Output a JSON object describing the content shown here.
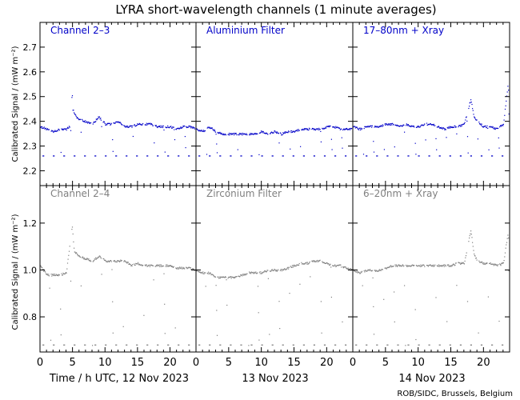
{
  "title": "LYRA short-wavelength channels (1 minute averages)",
  "ylabel": "Calibrated Signal / (mW m⁻²)",
  "xlabel_day1": "Time / h UTC, 12 Nov 2023",
  "xlabel_day2": "13 Nov 2023",
  "xlabel_day3": "14 Nov 2023",
  "credit": "ROB/SIDC, Brussels, Belgium",
  "colors": {
    "top_row": "#0000c8",
    "bottom_row": "#808080",
    "axes": "#000000"
  },
  "chart_data": {
    "type": "scatter",
    "grid": false,
    "x_ticks": [
      0,
      5,
      10,
      15,
      20
    ],
    "x_range_per_day_hours": [
      0,
      24
    ],
    "rows": [
      {
        "ylim": [
          2.14,
          2.8
        ],
        "y_ticks": [
          2.2,
          2.3,
          2.4,
          2.5,
          2.6,
          2.7
        ],
        "y_tick_labels": [
          "2.2",
          "2.3",
          "2.4",
          "2.5",
          "2.6",
          "2.7"
        ],
        "color": "#0000c8",
        "panels": [
          {
            "label": "Channel 2–3",
            "baseline": 2.38,
            "dip_min": 2.26,
            "points": [
              [
                0,
                2.38
              ],
              [
                1,
                2.37
              ],
              [
                2,
                2.36
              ],
              [
                3,
                2.37
              ],
              [
                4,
                2.37
              ],
              [
                4.5,
                2.38
              ],
              [
                4.9,
                2.52
              ],
              [
                5,
                2.45
              ],
              [
                5.5,
                2.42
              ],
              [
                6,
                2.41
              ],
              [
                7,
                2.4
              ],
              [
                8,
                2.39
              ],
              [
                9,
                2.42
              ],
              [
                10,
                2.39
              ],
              [
                11,
                2.39
              ],
              [
                12,
                2.4
              ],
              [
                13,
                2.38
              ],
              [
                14,
                2.38
              ],
              [
                15,
                2.39
              ],
              [
                16,
                2.39
              ],
              [
                17,
                2.39
              ],
              [
                18,
                2.38
              ],
              [
                19,
                2.38
              ],
              [
                20,
                2.38
              ],
              [
                21,
                2.37
              ],
              [
                22,
                2.38
              ],
              [
                23,
                2.38
              ],
              [
                24,
                2.37
              ]
            ]
          },
          {
            "label": "Aluminium Filter",
            "baseline": 2.36,
            "dip_min": 2.26,
            "points": [
              [
                0,
                2.37
              ],
              [
                1,
                2.36
              ],
              [
                2,
                2.38
              ],
              [
                3,
                2.36
              ],
              [
                4,
                2.35
              ],
              [
                5,
                2.35
              ],
              [
                6,
                2.35
              ],
              [
                7,
                2.35
              ],
              [
                8,
                2.35
              ],
              [
                9,
                2.35
              ],
              [
                10,
                2.36
              ],
              [
                11,
                2.35
              ],
              [
                12,
                2.36
              ],
              [
                13,
                2.35
              ],
              [
                14,
                2.36
              ],
              [
                15,
                2.36
              ],
              [
                16,
                2.37
              ],
              [
                17,
                2.37
              ],
              [
                18,
                2.37
              ],
              [
                19,
                2.37
              ],
              [
                20,
                2.38
              ],
              [
                21,
                2.38
              ],
              [
                22,
                2.37
              ],
              [
                23,
                2.37
              ],
              [
                24,
                2.37
              ]
            ]
          },
          {
            "label": "17–80nm + Xray",
            "baseline": 2.38,
            "dip_min": 2.26,
            "points": [
              [
                0,
                2.38
              ],
              [
                1,
                2.37
              ],
              [
                2,
                2.38
              ],
              [
                3,
                2.38
              ],
              [
                4,
                2.38
              ],
              [
                5,
                2.39
              ],
              [
                6,
                2.39
              ],
              [
                7,
                2.38
              ],
              [
                8,
                2.39
              ],
              [
                9,
                2.38
              ],
              [
                10,
                2.38
              ],
              [
                11,
                2.39
              ],
              [
                12,
                2.39
              ],
              [
                13,
                2.38
              ],
              [
                14,
                2.37
              ],
              [
                15,
                2.38
              ],
              [
                16,
                2.38
              ],
              [
                17,
                2.39
              ],
              [
                18,
                2.49
              ],
              [
                18.5,
                2.42
              ],
              [
                19,
                2.4
              ],
              [
                20,
                2.38
              ],
              [
                21,
                2.38
              ],
              [
                22,
                2.37
              ],
              [
                23,
                2.39
              ],
              [
                23.7,
                2.55
              ],
              [
                24,
                2.42
              ]
            ]
          }
        ]
      },
      {
        "ylim": [
          0.65,
          1.36
        ],
        "y_ticks": [
          0.8,
          1.0,
          1.2
        ],
        "y_tick_labels": [
          "0.8",
          "1.0",
          "1.2"
        ],
        "color": "#808080",
        "panels": [
          {
            "label": "Channel 2–4",
            "baseline": 1.0,
            "dip_min": 0.68,
            "points": [
              [
                0,
                1.02
              ],
              [
                1,
                0.98
              ],
              [
                2,
                0.98
              ],
              [
                3,
                0.98
              ],
              [
                4,
                0.99
              ],
              [
                4.9,
                1.19
              ],
              [
                5.2,
                1.08
              ],
              [
                6,
                1.06
              ],
              [
                7,
                1.05
              ],
              [
                8,
                1.04
              ],
              [
                9,
                1.06
              ],
              [
                10,
                1.04
              ],
              [
                11,
                1.04
              ],
              [
                12,
                1.04
              ],
              [
                13,
                1.04
              ],
              [
                14,
                1.02
              ],
              [
                15,
                1.03
              ],
              [
                16,
                1.02
              ],
              [
                17,
                1.02
              ],
              [
                18,
                1.02
              ],
              [
                19,
                1.02
              ],
              [
                20,
                1.02
              ],
              [
                21,
                1.01
              ],
              [
                22,
                1.01
              ],
              [
                23,
                1.01
              ],
              [
                24,
                1.0
              ]
            ]
          },
          {
            "label": "Zirconium Filter",
            "baseline": 0.99,
            "dip_min": 0.68,
            "points": [
              [
                0,
                1.0
              ],
              [
                1,
                0.99
              ],
              [
                2,
                0.99
              ],
              [
                3,
                0.97
              ],
              [
                4,
                0.97
              ],
              [
                5,
                0.97
              ],
              [
                6,
                0.97
              ],
              [
                7,
                0.98
              ],
              [
                8,
                0.99
              ],
              [
                9,
                0.99
              ],
              [
                10,
                0.99
              ],
              [
                11,
                1.0
              ],
              [
                12,
                1.0
              ],
              [
                13,
                1.0
              ],
              [
                14,
                1.01
              ],
              [
                15,
                1.02
              ],
              [
                16,
                1.03
              ],
              [
                17,
                1.03
              ],
              [
                18,
                1.04
              ],
              [
                19,
                1.04
              ],
              [
                20,
                1.03
              ],
              [
                21,
                1.02
              ],
              [
                22,
                1.02
              ],
              [
                23,
                1.01
              ],
              [
                24,
                1.0
              ]
            ]
          },
          {
            "label": "6–20nm + Xray",
            "baseline": 1.0,
            "dip_min": 0.68,
            "points": [
              [
                0,
                1.0
              ],
              [
                1,
                0.99
              ],
              [
                2,
                1.0
              ],
              [
                3,
                1.0
              ],
              [
                4,
                1.0
              ],
              [
                5,
                1.01
              ],
              [
                6,
                1.02
              ],
              [
                7,
                1.02
              ],
              [
                8,
                1.02
              ],
              [
                9,
                1.02
              ],
              [
                10,
                1.02
              ],
              [
                11,
                1.02
              ],
              [
                12,
                1.02
              ],
              [
                13,
                1.02
              ],
              [
                14,
                1.02
              ],
              [
                15,
                1.02
              ],
              [
                16,
                1.03
              ],
              [
                17,
                1.03
              ],
              [
                18,
                1.17
              ],
              [
                18.5,
                1.07
              ],
              [
                19,
                1.04
              ],
              [
                20,
                1.03
              ],
              [
                21,
                1.03
              ],
              [
                22,
                1.02
              ],
              [
                23,
                1.03
              ],
              [
                23.7,
                1.16
              ],
              [
                24,
                1.04
              ]
            ]
          }
        ]
      }
    ]
  }
}
